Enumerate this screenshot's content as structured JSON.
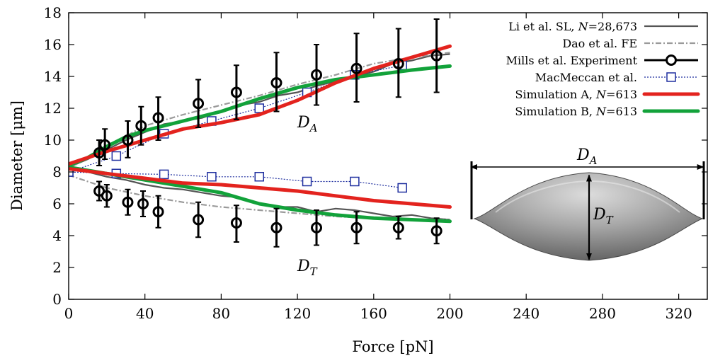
{
  "chart_data": {
    "type": "line",
    "title": "",
    "xlabel": "Force [pN]",
    "ylabel": "Diameter [μm]",
    "xlim": [
      0,
      335
    ],
    "ylim": [
      0,
      18
    ],
    "xticks": [
      0,
      40,
      80,
      120,
      160,
      200,
      240,
      280,
      320
    ],
    "yticks": [
      0,
      2,
      4,
      6,
      8,
      10,
      12,
      14,
      16,
      18
    ],
    "legend_position": "top-right",
    "annotations": {
      "da_label": "D",
      "da_sub": "A",
      "dt_label": "D",
      "dt_sub": "T",
      "inset_da_label": "D",
      "inset_da_sub": "A",
      "inset_dt_label": "D",
      "inset_dt_sub": "T"
    },
    "series": [
      {
        "name": "Li et al. SL, N=28,673",
        "legend": {
          "pre": "Li et al. SL, ",
          "var": "N",
          "post": "=28,673"
        },
        "color": "#555555",
        "style": "solid",
        "branches": [
          {
            "x": [
              0,
              10,
              20,
              30,
              40,
              50,
              60,
              70,
              80,
              90,
              100,
              110,
              120,
              130,
              140,
              150,
              160,
              170,
              180,
              190,
              200
            ],
            "y": [
              8.3,
              8.8,
              9.4,
              10.0,
              10.5,
              11.0,
              11.2,
              11.4,
              11.8,
              12.2,
              12.4,
              12.8,
              13.0,
              13.4,
              13.7,
              14.0,
              14.3,
              14.8,
              15.0,
              15.3,
              15.4
            ]
          },
          {
            "x": [
              0,
              10,
              20,
              30,
              40,
              50,
              60,
              70,
              80,
              90,
              100,
              110,
              120,
              130,
              140,
              150,
              160,
              170,
              180,
              190,
              200
            ],
            "y": [
              8.3,
              8.0,
              7.7,
              7.5,
              7.2,
              7.0,
              6.9,
              6.7,
              6.5,
              6.4,
              6.0,
              5.8,
              5.8,
              5.5,
              5.7,
              5.6,
              5.4,
              5.2,
              5.3,
              5.1,
              5.0
            ]
          }
        ]
      },
      {
        "name": "Dao et al. FE",
        "legend": {
          "pre": "Dao et al. FE",
          "var": "",
          "post": ""
        },
        "color": "#9a9a9a",
        "style": "dashdot",
        "branches": [
          {
            "x": [
              0,
              20,
              40,
              60,
              80,
              100,
              120,
              140,
              160,
              180,
              200
            ],
            "y": [
              8.2,
              9.6,
              10.9,
              11.6,
              12.2,
              12.8,
              13.5,
              14.1,
              14.8,
              15.2,
              15.5
            ]
          },
          {
            "x": [
              0,
              20,
              40,
              60,
              80,
              100,
              120,
              140,
              160,
              180,
              200
            ],
            "y": [
              7.8,
              7.0,
              6.5,
              6.1,
              5.8,
              5.6,
              5.4,
              5.2,
              5.1,
              5.0,
              5.0
            ]
          }
        ]
      },
      {
        "name": "Mills et al. Experiment",
        "legend": {
          "pre": "Mills et al. Experiment",
          "var": "",
          "post": ""
        },
        "color": "#000000",
        "style": "points",
        "points": [
          {
            "x": 16,
            "y": 9.2,
            "lo": 8.4,
            "hi": 10.0
          },
          {
            "x": 19,
            "y": 9.7,
            "lo": 8.8,
            "hi": 10.7
          },
          {
            "x": 31,
            "y": 10.0,
            "lo": 8.9,
            "hi": 11.2
          },
          {
            "x": 38,
            "y": 10.9,
            "lo": 9.7,
            "hi": 12.1
          },
          {
            "x": 47,
            "y": 11.4,
            "lo": 10.0,
            "hi": 12.7
          },
          {
            "x": 68,
            "y": 12.3,
            "lo": 10.8,
            "hi": 13.8
          },
          {
            "x": 88,
            "y": 13.0,
            "lo": 11.3,
            "hi": 14.7
          },
          {
            "x": 109,
            "y": 13.6,
            "lo": 11.8,
            "hi": 15.5
          },
          {
            "x": 130,
            "y": 14.1,
            "lo": 12.2,
            "hi": 16.0
          },
          {
            "x": 151,
            "y": 14.5,
            "lo": 12.4,
            "hi": 16.7
          },
          {
            "x": 173,
            "y": 14.8,
            "lo": 12.7,
            "hi": 17.0
          },
          {
            "x": 193,
            "y": 15.3,
            "lo": 13.0,
            "hi": 17.6
          },
          {
            "x": 16,
            "y": 6.8,
            "lo": 6.2,
            "hi": 7.4
          },
          {
            "x": 20,
            "y": 6.5,
            "lo": 5.8,
            "hi": 7.2
          },
          {
            "x": 31,
            "y": 6.1,
            "lo": 5.3,
            "hi": 6.9
          },
          {
            "x": 39,
            "y": 6.0,
            "lo": 5.2,
            "hi": 6.8
          },
          {
            "x": 47,
            "y": 5.5,
            "lo": 4.5,
            "hi": 6.5
          },
          {
            "x": 68,
            "y": 5.0,
            "lo": 3.9,
            "hi": 6.1
          },
          {
            "x": 88,
            "y": 4.8,
            "lo": 3.6,
            "hi": 5.9
          },
          {
            "x": 109,
            "y": 4.5,
            "lo": 3.3,
            "hi": 5.7
          },
          {
            "x": 130,
            "y": 4.5,
            "lo": 3.4,
            "hi": 5.6
          },
          {
            "x": 151,
            "y": 4.5,
            "lo": 3.5,
            "hi": 5.5
          },
          {
            "x": 173,
            "y": 4.5,
            "lo": 3.8,
            "hi": 5.2
          },
          {
            "x": 193,
            "y": 4.3,
            "lo": 3.5,
            "hi": 5.1
          }
        ]
      },
      {
        "name": "MacMeccan et al.",
        "legend": {
          "pre": "MacMeccan et al.",
          "var": "",
          "post": ""
        },
        "color": "#1f2f9f",
        "style": "dotted-squares",
        "branches": [
          {
            "x": [
              0,
              25,
              50,
              75,
              100,
              125,
              150,
              175
            ],
            "y": [
              8.0,
              9.0,
              10.4,
              11.2,
              12.0,
              13.0,
              14.1,
              14.7
            ]
          },
          {
            "x": [
              0,
              25,
              50,
              75,
              100,
              125,
              150,
              175
            ],
            "y": [
              8.0,
              7.9,
              7.85,
              7.7,
              7.7,
              7.4,
              7.4,
              7.0
            ]
          }
        ]
      },
      {
        "name": "Simulation A, N=613",
        "legend": {
          "pre": "Simulation A, ",
          "var": "N",
          "post": "=613"
        },
        "color": "#e3231e",
        "style": "thick",
        "branches": [
          {
            "x": [
              0,
              20,
              40,
              60,
              80,
              100,
              120,
              140,
              160,
              180,
              200
            ],
            "y": [
              8.5,
              9.3,
              10.0,
              10.7,
              11.1,
              11.6,
              12.5,
              13.6,
              14.5,
              15.2,
              15.9
            ]
          },
          {
            "x": [
              0,
              20,
              40,
              60,
              80,
              100,
              120,
              140,
              160,
              180,
              200
            ],
            "y": [
              8.2,
              7.9,
              7.6,
              7.3,
              7.2,
              7.0,
              6.8,
              6.5,
              6.2,
              6.0,
              5.8
            ]
          }
        ]
      },
      {
        "name": "Simulation B, N=613",
        "legend": {
          "pre": "Simulation B, ",
          "var": "N",
          "post": "=613"
        },
        "color": "#12a23a",
        "style": "thick",
        "branches": [
          {
            "x": [
              0,
              10,
              20,
              30,
              40,
              60,
              80,
              100,
              120,
              140,
              160,
              180,
              200
            ],
            "y": [
              8.4,
              8.9,
              9.6,
              10.2,
              10.6,
              11.2,
              11.8,
              12.6,
              13.3,
              13.8,
              14.1,
              14.4,
              14.65
            ]
          },
          {
            "x": [
              0,
              20,
              40,
              60,
              80,
              100,
              120,
              140,
              160,
              180,
              200
            ],
            "y": [
              8.3,
              7.9,
              7.5,
              7.1,
              6.7,
              6.0,
              5.6,
              5.3,
              5.1,
              5.0,
              4.9
            ]
          }
        ]
      }
    ],
    "inset": {
      "description_terms": [
        "D_A",
        "D_T"
      ],
      "da_arrow": [
        211,
        333
      ],
      "dt_arrow": [
        2.5,
        7.8
      ]
    }
  }
}
